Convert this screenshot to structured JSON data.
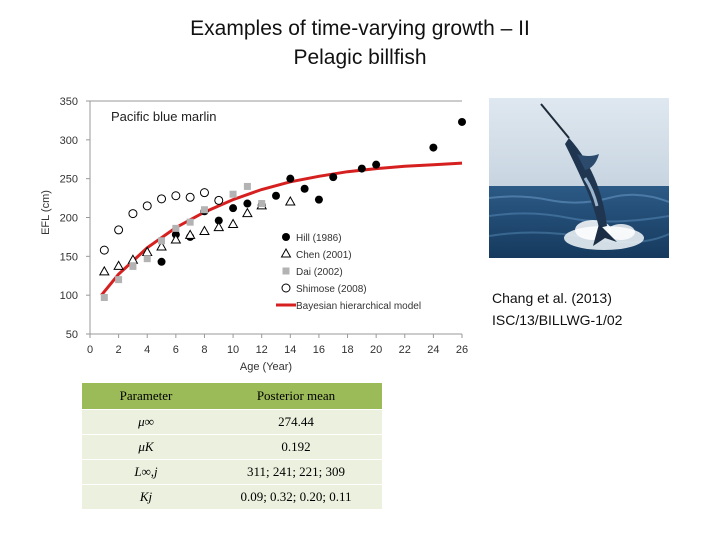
{
  "title_line1": "Examples of time-varying growth – II",
  "title_line2": "Pelagic billfish",
  "citation_line1": "Chang et al. (2013)",
  "citation_line2": "ISC/13/BILLWG-1/02",
  "photo_subject": "blue-marlin-photo",
  "chart_data": {
    "type": "scatter",
    "title": "Pacific blue marlin",
    "xlabel": "Age (Year)",
    "ylabel": "EFL (cm)",
    "xlim": [
      0,
      26
    ],
    "ylim": [
      50,
      350
    ],
    "xticks": [
      0,
      2,
      4,
      6,
      8,
      10,
      12,
      14,
      16,
      18,
      20,
      22,
      24,
      26
    ],
    "yticks": [
      50,
      100,
      150,
      200,
      250,
      300,
      350
    ],
    "grid": false,
    "legend_position": "bottom-right",
    "series": [
      {
        "name": "Hill (1986)",
        "marker": "filled-circle",
        "color": "#000000",
        "points": [
          [
            5,
            143
          ],
          [
            6,
            178
          ],
          [
            7,
            175
          ],
          [
            8,
            208
          ],
          [
            9,
            196
          ],
          [
            10,
            212
          ],
          [
            11,
            218
          ],
          [
            12,
            216
          ],
          [
            13,
            228
          ],
          [
            14,
            250
          ],
          [
            15,
            237
          ],
          [
            16,
            223
          ],
          [
            17,
            252
          ],
          [
            19,
            263
          ],
          [
            20,
            268
          ],
          [
            24,
            290
          ],
          [
            26,
            323
          ]
        ]
      },
      {
        "name": "Chen (2001)",
        "marker": "open-triangle",
        "color": "#000000",
        "points": [
          [
            1,
            130
          ],
          [
            2,
            137
          ],
          [
            3,
            145
          ],
          [
            4,
            155
          ],
          [
            5,
            162
          ],
          [
            6,
            171
          ],
          [
            7,
            177
          ],
          [
            8,
            182
          ],
          [
            9,
            187
          ],
          [
            10,
            191
          ],
          [
            11,
            205
          ],
          [
            12,
            215
          ],
          [
            14,
            220
          ]
        ]
      },
      {
        "name": "Dai (2002)",
        "marker": "filled-square",
        "color": "#b3b3b3",
        "points": [
          [
            1,
            97
          ],
          [
            2,
            120
          ],
          [
            3,
            137
          ],
          [
            4,
            147
          ],
          [
            5,
            170
          ],
          [
            6,
            186
          ],
          [
            7,
            194
          ],
          [
            8,
            210
          ],
          [
            9,
            222
          ],
          [
            10,
            230
          ],
          [
            11,
            240
          ],
          [
            12,
            218
          ]
        ]
      },
      {
        "name": "Shimose (2008)",
        "marker": "open-circle",
        "color": "#000000",
        "points": [
          [
            1,
            158
          ],
          [
            2,
            184
          ],
          [
            3,
            205
          ],
          [
            4,
            215
          ],
          [
            5,
            224
          ],
          [
            6,
            228
          ],
          [
            7,
            226
          ],
          [
            8,
            232
          ],
          [
            9,
            222
          ]
        ]
      },
      {
        "name": "Bayesian hierarchical model",
        "marker": "line",
        "color": "#d62020",
        "points": [
          [
            0.8,
            100
          ],
          [
            2,
            127
          ],
          [
            4,
            161
          ],
          [
            6,
            187
          ],
          [
            8,
            207
          ],
          [
            10,
            223
          ],
          [
            12,
            236
          ],
          [
            14,
            246
          ],
          [
            16,
            253
          ],
          [
            18,
            259
          ],
          [
            20,
            263
          ],
          [
            22,
            266
          ],
          [
            24,
            268
          ],
          [
            26,
            270
          ]
        ]
      }
    ]
  },
  "table": {
    "headers": [
      "Parameter",
      "Posterior mean"
    ],
    "rows": [
      {
        "param": "μ∞",
        "value": "274.44"
      },
      {
        "param": "μK",
        "value": "0.192"
      },
      {
        "param": "L∞,j",
        "value": "311; 241; 221; 309"
      },
      {
        "param": "Kj",
        "value": "0.09; 0.32; 0.20; 0.11"
      }
    ]
  }
}
